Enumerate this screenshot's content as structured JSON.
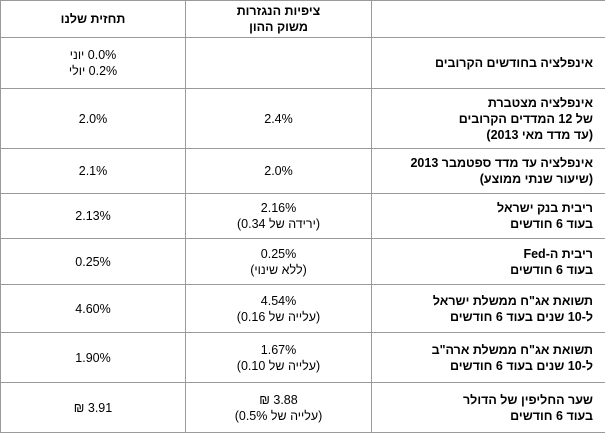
{
  "header": {
    "our_forecast": "תחזית שלנו",
    "market_expectations_1": "ציפיות הנגזרות",
    "market_expectations_2": "משוק ההון",
    "label": ""
  },
  "rows": [
    {
      "label": [
        "אינפלציה בחודשים הקרובים"
      ],
      "market": [
        ""
      ],
      "ours": [
        "0.0% יוני",
        "0.2% יולי"
      ]
    },
    {
      "label": [
        "אינפלציה מצטברת",
        "של 12 המדדים הקרובים",
        "(עד מדד מאי 2013)"
      ],
      "market": [
        "2.4%"
      ],
      "ours": [
        "2.0%"
      ]
    },
    {
      "label": [
        "אינפלציה עד מדד ספטמבר 2013",
        "(שיעור שנתי ממוצע)"
      ],
      "market": [
        "2.0%"
      ],
      "ours": [
        "2.1%"
      ]
    },
    {
      "label": [
        "ריבית בנק ישראל",
        "בעוד 6 חודשים"
      ],
      "market": [
        "2.16%",
        "(ירידה של 0.34)"
      ],
      "ours": [
        "2.13%"
      ]
    },
    {
      "label": [
        "ריבית ה-Fed",
        "בעוד 6 חודשים"
      ],
      "market": [
        "0.25%",
        "(ללא שינוי)"
      ],
      "ours": [
        "0.25%"
      ]
    },
    {
      "label": [
        "תשואת אג\"ח ממשלת ישראל",
        "ל-10 שנים בעוד 6 חודשים"
      ],
      "market": [
        "4.54%",
        "(עלייה של 0.16)"
      ],
      "ours": [
        "4.60%"
      ]
    },
    {
      "label": [
        "תשואת אג\"ח ממשלת ארה\"ב",
        "ל-10 שנים בעוד 6 חודשים"
      ],
      "market": [
        "1.67%",
        "(עלייה של 0.10)"
      ],
      "ours": [
        "1.90%"
      ]
    },
    {
      "label": [
        "שער החליפין של הדולר",
        "בעוד 6 חודשים"
      ],
      "market": [
        "3.88 ₪",
        "(עלייה של 0.5%)"
      ],
      "ours": [
        "3.91 ₪"
      ]
    }
  ]
}
